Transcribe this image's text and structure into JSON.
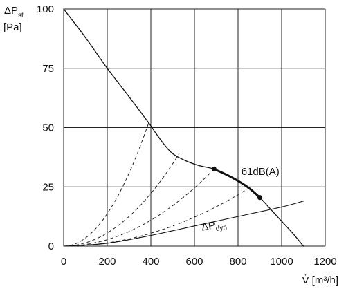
{
  "chart_data": {
    "type": "line",
    "ylabel_main": "ΔP",
    "ylabel_sub": "st",
    "ylabel_unit": "[Pa]",
    "xlabel": "V̇ [m³/h]",
    "xlim": [
      0,
      1200
    ],
    "ylim": [
      0,
      100
    ],
    "x_ticks": [
      0,
      200,
      400,
      600,
      800,
      1000,
      1200
    ],
    "y_ticks": [
      0,
      25,
      50,
      75,
      100
    ],
    "grid": true,
    "series": [
      {
        "role": "fan-curve",
        "x": [
          0,
          100,
          200,
          300,
          390,
          420,
          460,
          500,
          560,
          620,
          690,
          750,
          800,
          850,
          900,
          950,
          1000,
          1050,
          1100
        ],
        "y": [
          100,
          88,
          75,
          63,
          52,
          48,
          43,
          39,
          36,
          34,
          32.5,
          30,
          27.5,
          24.5,
          20.5,
          15.5,
          10.5,
          5.5,
          0
        ]
      },
      {
        "role": "operating-range",
        "x": [
          690,
          750,
          800,
          850,
          900
        ],
        "y": [
          32.5,
          30,
          27.5,
          24.5,
          20.5
        ]
      },
      {
        "name": "ΔP_dyn",
        "role": "dynamic-pressure",
        "x": [
          0,
          200,
          400,
          600,
          800,
          1000,
          1100
        ],
        "y": [
          0,
          1.2,
          4.5,
          8.5,
          12.5,
          16.5,
          19
        ]
      }
    ],
    "system_curves": [
      {
        "x_end": 390,
        "y_end": 52
      },
      {
        "x_end": 530,
        "y_end": 39
      },
      {
        "x_end": 690,
        "y_end": 32.5
      },
      {
        "x_end": 850,
        "y_end": 24.5
      }
    ],
    "points": [
      {
        "x": 690,
        "y": 32.5
      },
      {
        "x": 900,
        "y": 20.5
      }
    ],
    "annotations": [
      {
        "text": "61dB(A)",
        "x": 815,
        "y": 30
      },
      {
        "text_main": "ΔP",
        "text_sub": "dyn",
        "x": 635,
        "y": 6.5
      }
    ]
  }
}
